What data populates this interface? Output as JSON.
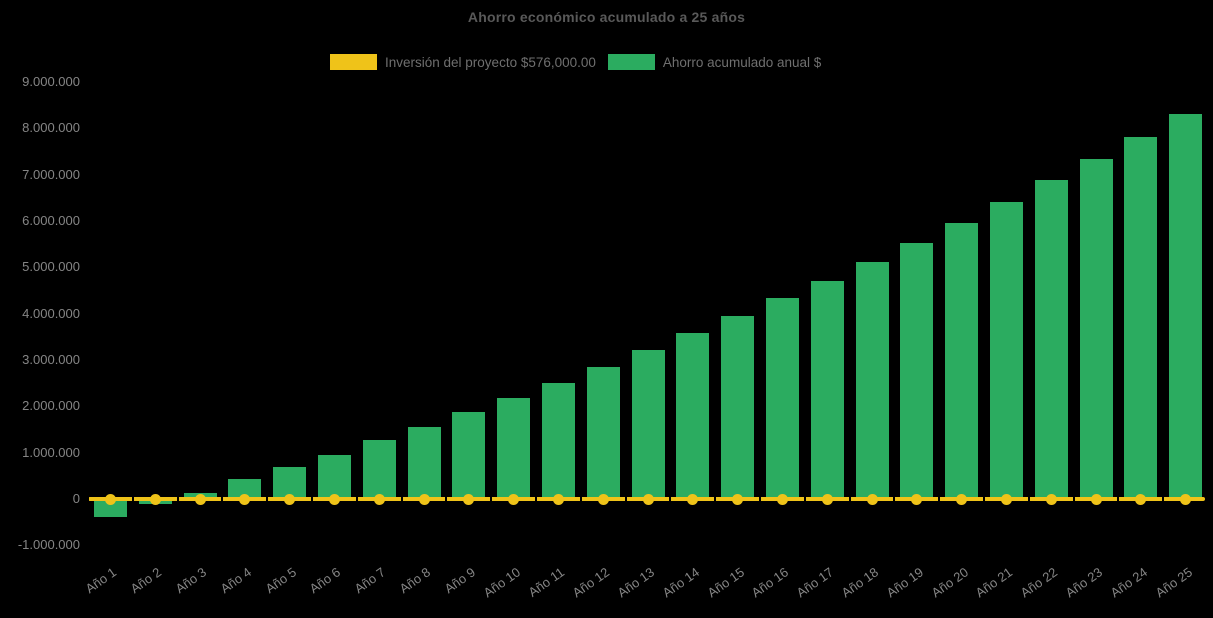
{
  "title": "Ahorro económico acumulado a 25 años",
  "legend": {
    "investment_label": "Inversión del proyecto $576,000.00",
    "savings_label": "Ahorro acumulado anual $"
  },
  "colors": {
    "background": "#000000",
    "bar_green": "#2BAC60",
    "line_yellow": "#EFC319",
    "title_text": "#595959",
    "axis_text": "#858585",
    "legend_text": "#6F6F6F"
  },
  "chart_data": {
    "type": "bar",
    "title": "Ahorro económico acumulado a 25 años",
    "xlabel": "",
    "ylabel": "",
    "grid": false,
    "legend_position": "top",
    "ylim": [
      -1000000,
      9000000
    ],
    "ytick_step": 1000000,
    "ytick_labels": [
      "9.000.000",
      "8.000.000",
      "7.000.000",
      "6.000.000",
      "5.000.000",
      "4.000.000",
      "3.000.000",
      "2.000.000",
      "1.000.000",
      "0",
      "-1.000.000"
    ],
    "categories": [
      "Año 1",
      "Año 2",
      "Año 3",
      "Año 4",
      "Año 5",
      "Año 6",
      "Año 7",
      "Año 8",
      "Año 9",
      "Año 10",
      "Año 11",
      "Año 12",
      "Año 13",
      "Año 14",
      "Año 15",
      "Año 16",
      "Año 17",
      "Año 18",
      "Año 19",
      "Año 20",
      "Año 21",
      "Año 22",
      "Año 23",
      "Año 24",
      "Año 25"
    ],
    "series": [
      {
        "name": "Ahorro acumulado anual $",
        "type": "bar",
        "color": "#2BAC60",
        "values": [
          -380000,
          -110000,
          130000,
          430000,
          680000,
          960000,
          1270000,
          1560000,
          1870000,
          2190000,
          2500000,
          2850000,
          3210000,
          3580000,
          3940000,
          4330000,
          4700000,
          5120000,
          5530000,
          5960000,
          6400000,
          6880000,
          7330000,
          7810000,
          8300000
        ]
      },
      {
        "name": "Inversión del proyecto $576,000.00",
        "type": "line",
        "color": "#EFC319",
        "markers": true,
        "constant_value_drawn_at": 0
      }
    ]
  }
}
